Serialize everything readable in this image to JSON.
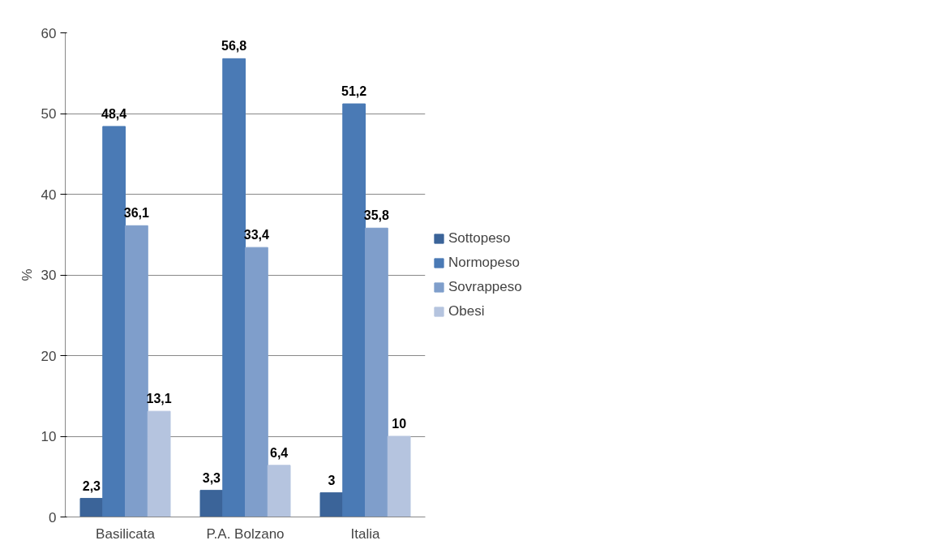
{
  "chart_data": {
    "type": "bar",
    "ylabel": "%",
    "categories": [
      "Basilicata",
      "P.A. Bolzano",
      "Italia"
    ],
    "series": [
      {
        "name": "Sottopeso",
        "color": "#3b6499",
        "values": [
          2.3,
          3.3,
          3
        ],
        "value_labels": [
          "2,3",
          "3,3",
          "3"
        ]
      },
      {
        "name": "Normopeso",
        "color": "#4a7ab5",
        "values": [
          48.4,
          56.8,
          51.2
        ],
        "value_labels": [
          "48,4",
          "56,8",
          "51,2"
        ]
      },
      {
        "name": "Sovrappeso",
        "color": "#7f9ecb",
        "values": [
          36.1,
          33.4,
          35.8
        ],
        "value_labels": [
          "36,1",
          "33,4",
          "35,8"
        ]
      },
      {
        "name": "Obesi",
        "color": "#b5c4df",
        "values": [
          13.1,
          6.4,
          10
        ],
        "value_labels": [
          "13,1",
          "6,4",
          "10"
        ]
      }
    ],
    "ylim": [
      0,
      60
    ],
    "yticks": [
      0,
      10,
      20,
      30,
      40,
      50,
      60
    ],
    "grid": "y",
    "legend": "right"
  }
}
